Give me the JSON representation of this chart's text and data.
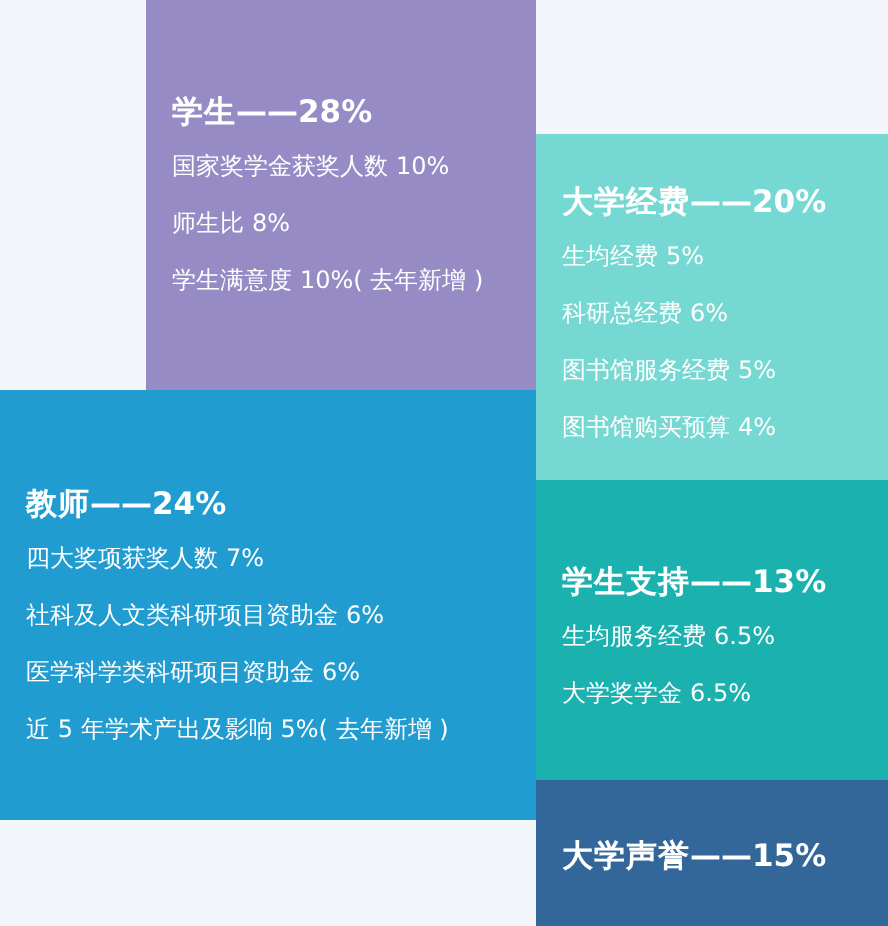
{
  "chart_data": [
    {
      "type": "other",
      "title": "学生——28%",
      "color": "#978bc5",
      "categories": [
        "国家奖学金获奖人数",
        "师生比",
        "学生满意度"
      ],
      "values": [
        10,
        8,
        10
      ],
      "value_labels": [
        "10%",
        "8%",
        "10%( 去年新增 )"
      ]
    },
    {
      "type": "other",
      "title": "大学经费——20%",
      "color": "#76d8d2",
      "categories": [
        "生均经费",
        "科研总经费",
        "图书馆服务经费",
        "图书馆购买预算"
      ],
      "values": [
        5,
        6,
        5,
        4
      ],
      "value_labels": [
        "5%",
        "6%",
        "5%",
        "4%"
      ]
    },
    {
      "type": "other",
      "title": "教师——24%",
      "color": "#219cd0",
      "categories": [
        "四大奖项获奖人数",
        "社科及人文类科研项目资助金",
        "医学科学类科研项目资助金",
        "近 5 年学术产出及影响"
      ],
      "values": [
        7,
        6,
        6,
        5
      ],
      "value_labels": [
        "7%",
        "6%",
        "6%",
        "5%( 去年新增 )"
      ]
    },
    {
      "type": "other",
      "title": "学生支持——13%",
      "color": "#1bb1af",
      "categories": [
        "生均服务经费",
        "大学奖学金"
      ],
      "values": [
        6.5,
        6.5
      ],
      "value_labels": [
        "6.5%",
        "6.5%"
      ]
    },
    {
      "type": "other",
      "title": "大学声誉——15%",
      "color": "#336699"
    }
  ]
}
